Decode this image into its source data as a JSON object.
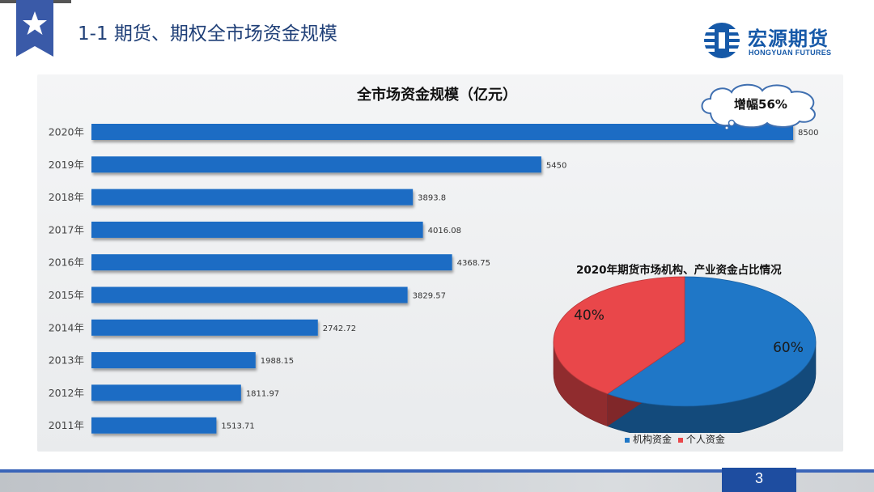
{
  "slide": {
    "title": "1-1 期货、期权全市场资金规模",
    "page_number": "3",
    "badge_icon": "star-icon"
  },
  "logo": {
    "name_cn": "宏源期货",
    "name_en": "HONGYUAN FUTURES",
    "color": "#1659a8"
  },
  "callout": {
    "text": "增幅56%"
  },
  "chart_data": [
    {
      "type": "bar",
      "orientation": "horizontal",
      "title": "全市场资金规模（亿元）",
      "categories": [
        "2020年",
        "2019年",
        "2018年",
        "2017年",
        "2016年",
        "2015年",
        "2014年",
        "2013年",
        "2012年",
        "2011年"
      ],
      "values": [
        8500,
        5450,
        3893.8,
        4016.08,
        4368.75,
        3829.57,
        2742.72,
        1988.15,
        1811.97,
        1513.71
      ],
      "value_labels": [
        "8500",
        "5450",
        "3893.8",
        "4016.08",
        "4368.75",
        "3829.57",
        "2742.72",
        "1988.15",
        "1811.97",
        "1513.71"
      ],
      "xlim": [
        0,
        8500
      ],
      "color": "#1a6cc4",
      "grid": false
    },
    {
      "type": "pie",
      "style": "3d",
      "title": "2020年期货市场机构、产业资金占比情况",
      "categories": [
        "机构资金",
        "个人资金"
      ],
      "values": [
        60,
        40
      ],
      "value_labels": [
        "60%",
        "40%"
      ],
      "colors": [
        "#1f77c7",
        "#e9474a"
      ],
      "legend": "bottom"
    }
  ]
}
